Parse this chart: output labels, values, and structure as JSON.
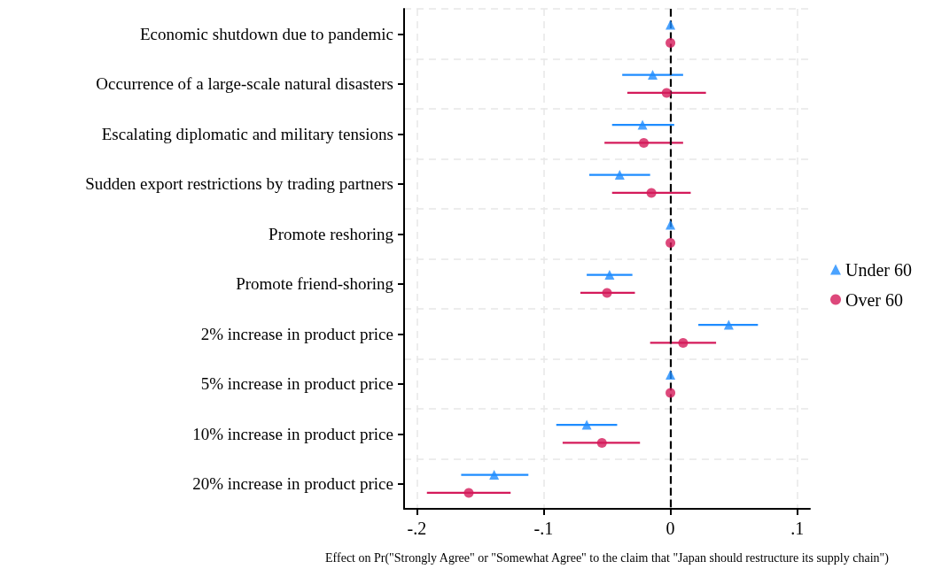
{
  "chart_data": {
    "type": "scatter",
    "orientation": "horizontal",
    "xlabel": "Effect on Pr(\"Strongly Agree\" or \"Somewhat Agree\" to the claim that \"Japan should restructure its supply chain\")",
    "categories": [
      "Economic shutdown due to pandemic",
      "Occurrence of a large-scale natural disasters",
      "Escalating diplomatic and military tensions",
      "Sudden export restrictions by trading partners",
      "Promote reshoring",
      "Promote friend-shoring",
      "2% increase in product price",
      "5% increase in product price",
      "10% increase in product price",
      "20% increase in product price"
    ],
    "series": [
      {
        "name": "Under 60",
        "color": "#1e8cff",
        "marker": "triangle",
        "values": [
          0,
          -0.014,
          -0.022,
          -0.04,
          0,
          -0.048,
          0.046,
          0,
          -0.066,
          -0.139
        ],
        "errors": [
          null,
          [
            -0.038,
            0.01
          ],
          [
            -0.046,
            0.003
          ],
          [
            -0.064,
            -0.016
          ],
          null,
          [
            -0.066,
            -0.03
          ],
          [
            0.022,
            0.069
          ],
          null,
          [
            -0.09,
            -0.042
          ],
          [
            -0.165,
            -0.112
          ]
        ]
      },
      {
        "name": "Over 60",
        "color": "#d41a5a",
        "marker": "circle",
        "values": [
          0,
          -0.003,
          -0.021,
          -0.015,
          0,
          -0.05,
          0.01,
          0,
          -0.054,
          -0.159
        ],
        "errors": [
          null,
          [
            -0.034,
            0.028
          ],
          [
            -0.052,
            0.01
          ],
          [
            -0.046,
            0.016
          ],
          null,
          [
            -0.071,
            -0.028
          ],
          [
            -0.016,
            0.036
          ],
          null,
          [
            -0.085,
            -0.024
          ],
          [
            -0.192,
            -0.126
          ]
        ]
      }
    ],
    "xlim": [
      -0.21,
      0.11
    ],
    "xticks": [
      {
        "value": -0.2,
        "label": "-.2"
      },
      {
        "value": -0.1,
        "label": "-.1"
      },
      0,
      {
        "value": 0.1,
        "label": ".1"
      }
    ],
    "ref_lines": [
      {
        "axis": "x",
        "value": 0,
        "color": "#000000",
        "line_style": "dashed"
      }
    ],
    "grid": true,
    "legend": "right"
  }
}
